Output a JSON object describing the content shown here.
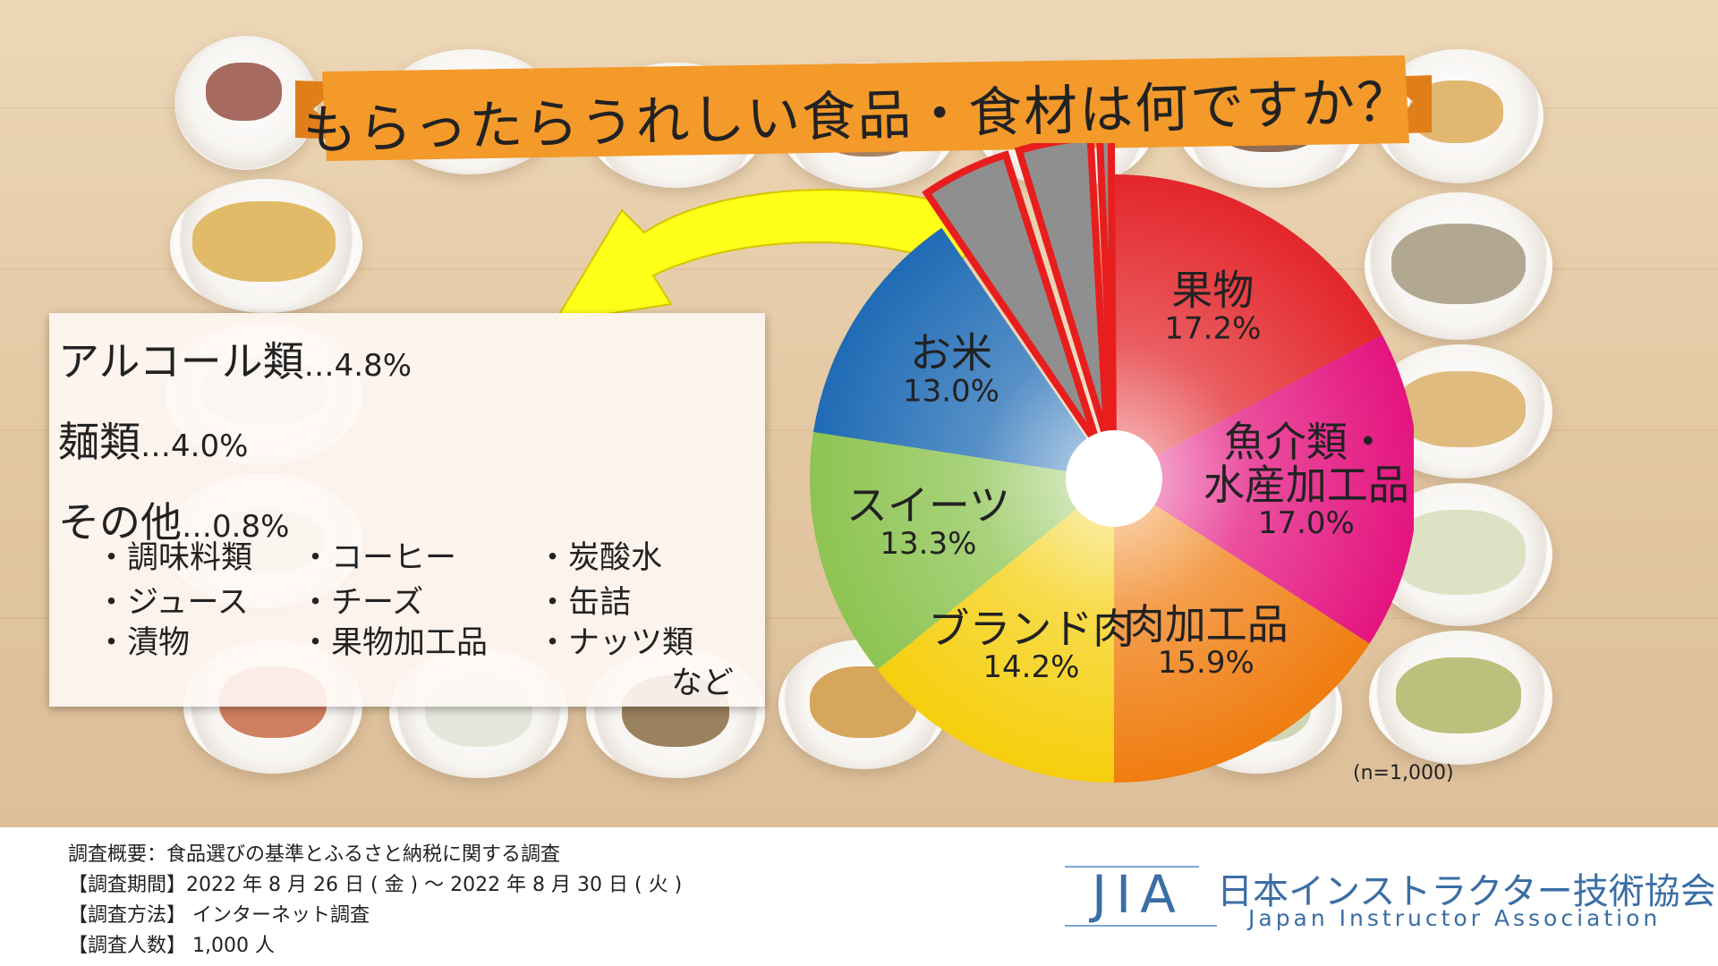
{
  "title": "もらったらうれしい食品・食材は何ですか？",
  "sample_size": "(n=1,000)",
  "info_panel": {
    "lines": [
      {
        "label": "アルコール類",
        "value": "…4.8%"
      },
      {
        "label": "麺類",
        "value": "…4.0%"
      },
      {
        "label": "その他",
        "value": "…0.8%"
      }
    ],
    "other_items": [
      "・調味料類",
      "・コーヒー",
      "・炭酸水",
      "・ジュース",
      "・チーズ",
      "・缶詰",
      "・漬物",
      "・果物加工品",
      "・ナッツ類"
    ],
    "etc": "など"
  },
  "survey": {
    "overview": "調査概要：食品選びの基準とふるさと納税に関する調査",
    "period": "【調査期間】2022 年 8 月 26 日 ( 金 ) ～ 2022 年 8 月 30 日 ( 火 )",
    "method": "【調査方法】 インターネット調査",
    "respondents": "【調査人数】 1,000 人"
  },
  "logo": {
    "abbr": "JIA",
    "name_jp": "日本インストラクター技術協会",
    "name_en": "Japan Instructor Association"
  },
  "colors": {
    "fruit": "#e3262b",
    "seafood": "#e4147f",
    "meat_processed": "#f07d10",
    "brand_meat": "#f5cf0e",
    "sweets": "#8dc452",
    "rice": "#1f6bb5",
    "grouped": "#8f8f8f",
    "banner": "#f39a2a",
    "arrow": "#ffff1a"
  },
  "chart_data": {
    "type": "pie",
    "start": "12 o'clock, clockwise",
    "slices": [
      {
        "label": "果物",
        "value": 17.2,
        "value_label": "17.2%",
        "color": "#e3262b"
      },
      {
        "label": "魚介類・水産加工品",
        "label_lines": [
          "魚介類・",
          "水産加工品"
        ],
        "value": 17.0,
        "value_label": "17.0%",
        "color": "#e4147f"
      },
      {
        "label": "肉加工品",
        "value": 15.9,
        "value_label": "15.9%",
        "color": "#f07d10"
      },
      {
        "label": "ブランド肉",
        "value": 14.2,
        "value_label": "14.2%",
        "color": "#f5cf0e"
      },
      {
        "label": "スイーツ",
        "value": 13.3,
        "value_label": "13.3%",
        "color": "#8dc452"
      },
      {
        "label": "お米",
        "value": 13.0,
        "value_label": "13.0%",
        "color": "#1f6bb5"
      },
      {
        "label": "アルコール類",
        "value": 4.8,
        "color": "#8f8f8f",
        "exploded": true
      },
      {
        "label": "麺類",
        "value": 4.0,
        "color": "#8f8f8f",
        "exploded": true
      },
      {
        "label": "その他",
        "value": 0.8,
        "color": "#8f8f8f",
        "exploded": true
      }
    ]
  }
}
